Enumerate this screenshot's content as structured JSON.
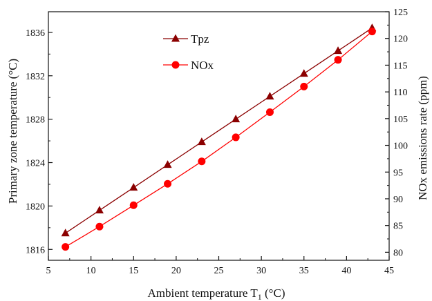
{
  "chart_data": {
    "type": "line",
    "x": [
      7,
      11,
      15,
      19,
      23,
      27,
      31,
      35,
      39,
      43
    ],
    "xlabel": "Ambient temperature T",
    "xlabel_subscript": "1",
    "xlabel_suffix": " (°C)",
    "xlim": [
      5,
      45
    ],
    "xticks": [
      5,
      10,
      15,
      20,
      25,
      30,
      35,
      40,
      45
    ],
    "y_left": {
      "label": "Primary zone temperature (°C)",
      "lim": [
        1815,
        1837.9
      ],
      "ticks": [
        1816,
        1820,
        1824,
        1828,
        1832,
        1836
      ]
    },
    "y_right": {
      "label": "NOx emissions rate (ppm)",
      "lim": [
        78.5,
        125
      ],
      "ticks": [
        80,
        85,
        90,
        95,
        100,
        105,
        110,
        115,
        120,
        125
      ]
    },
    "series": [
      {
        "name": "Tpz",
        "axis": "left",
        "marker": "triangle",
        "color": "#8b0000",
        "values": [
          1817.5,
          1819.6,
          1821.7,
          1823.8,
          1825.9,
          1828.0,
          1830.1,
          1832.2,
          1834.3,
          1836.4
        ]
      },
      {
        "name": "NOx",
        "axis": "right",
        "marker": "circle",
        "color": "#ff0000",
        "values": [
          81.0,
          84.8,
          88.8,
          92.8,
          97.0,
          101.5,
          106.2,
          111.0,
          116.0,
          121.3
        ]
      }
    ],
    "legend_position": "top-left",
    "grid": false
  }
}
